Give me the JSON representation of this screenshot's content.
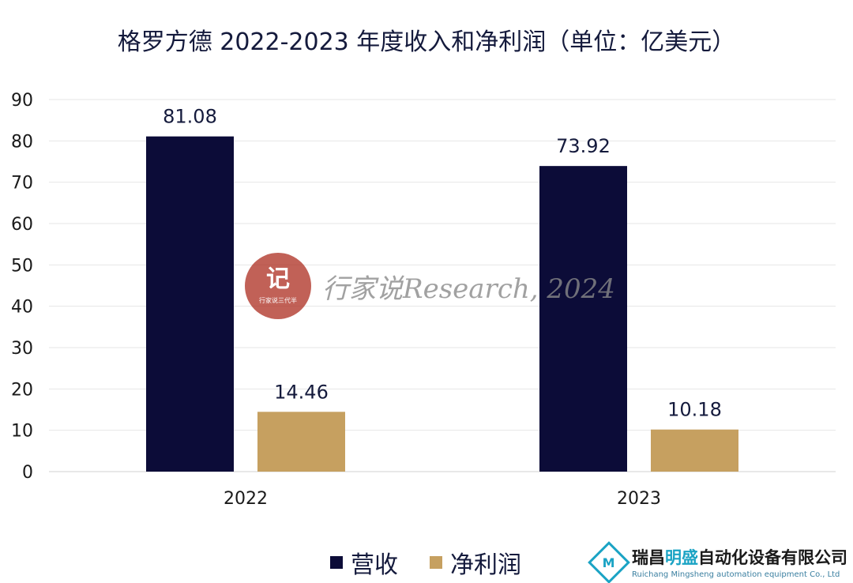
{
  "chart_data": {
    "type": "bar",
    "title": "格罗方德 2022-2023 年度收入和净利润（单位：亿美元）",
    "categories": [
      "2022",
      "2023"
    ],
    "series": [
      {
        "name": "营收",
        "values": [
          81.08,
          73.92
        ],
        "color": "#0c0c38"
      },
      {
        "name": "净利润",
        "values": [
          14.46,
          10.18
        ],
        "color": "#c6a060"
      }
    ],
    "ylim": [
      0,
      90
    ],
    "yticks": [
      0,
      10,
      20,
      30,
      40,
      50,
      60,
      70,
      80,
      90
    ],
    "grid": true,
    "legend_placement": "bottom"
  },
  "watermark": {
    "logo_mark": "记",
    "logo_sub": "行家说三代半",
    "text": "行家说Research, 2024"
  },
  "brand": {
    "icon": "M",
    "name_part1": "瑞昌",
    "name_highlight": "明盛",
    "name_part2": "自动化设备有限公司",
    "english": "Ruichang Mingsheng automation equipment Co., Ltd"
  }
}
